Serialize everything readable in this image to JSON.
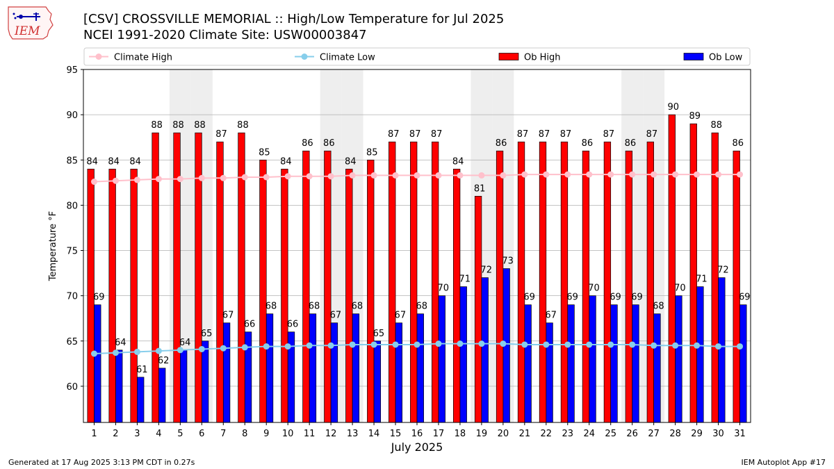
{
  "header": {
    "title_line1": "[CSV] CROSSVILLE MEMORIAL :: High/Low Temperature for Jul 2025",
    "title_line2": "NCEI 1991-2020 Climate Site: USW00003847",
    "logo_text": "IEM"
  },
  "footer": {
    "generated": "Generated at 17 Aug 2025 3:13 PM CDT in 0.27s",
    "app": "IEM Autoplot App #17"
  },
  "colors": {
    "ob_high": "#ff0000",
    "ob_low": "#0000ff",
    "climate_high": "#ffc0cb",
    "climate_low": "#87ceeb",
    "weekend_shade": "#eeeeee",
    "grid": "#b0b0b0"
  },
  "chart_data": {
    "type": "bar",
    "xlabel": "July 2025",
    "ylabel": "Temperature °F",
    "ylim": [
      56,
      95
    ],
    "yticks": [
      60,
      65,
      70,
      75,
      80,
      85,
      90,
      95
    ],
    "grid": "horizontal",
    "legend_position": "top",
    "categories": [
      1,
      2,
      3,
      4,
      5,
      6,
      7,
      8,
      9,
      10,
      11,
      12,
      13,
      14,
      15,
      16,
      17,
      18,
      19,
      20,
      21,
      22,
      23,
      24,
      25,
      26,
      27,
      28,
      29,
      30,
      31
    ],
    "weekend_days": [
      5,
      6,
      12,
      13,
      19,
      20,
      26,
      27
    ],
    "series": [
      {
        "name": "Ob High",
        "kind": "bar",
        "values": [
          84,
          84,
          84,
          88,
          88,
          88,
          87,
          88,
          85,
          84,
          86,
          86,
          84,
          85,
          87,
          87,
          87,
          84,
          81,
          86,
          87,
          87,
          87,
          86,
          87,
          86,
          87,
          90,
          89,
          88,
          86
        ]
      },
      {
        "name": "Ob Low",
        "kind": "bar",
        "values": [
          69,
          64,
          61,
          62,
          64,
          65,
          67,
          66,
          68,
          66,
          68,
          67,
          68,
          65,
          67,
          68,
          70,
          71,
          72,
          73,
          69,
          67,
          69,
          70,
          69,
          69,
          68,
          70,
          71,
          72,
          69
        ]
      },
      {
        "name": "Climate High",
        "kind": "line",
        "values": [
          82.6,
          82.7,
          82.8,
          82.9,
          82.9,
          83.0,
          83.0,
          83.1,
          83.1,
          83.2,
          83.2,
          83.2,
          83.3,
          83.3,
          83.3,
          83.3,
          83.3,
          83.3,
          83.3,
          83.3,
          83.4,
          83.4,
          83.4,
          83.4,
          83.4,
          83.4,
          83.4,
          83.4,
          83.4,
          83.4,
          83.4
        ]
      },
      {
        "name": "Climate Low",
        "kind": "line",
        "values": [
          63.6,
          63.7,
          63.8,
          63.9,
          64.0,
          64.1,
          64.2,
          64.3,
          64.4,
          64.4,
          64.5,
          64.5,
          64.6,
          64.6,
          64.6,
          64.6,
          64.7,
          64.7,
          64.7,
          64.7,
          64.6,
          64.6,
          64.6,
          64.6,
          64.6,
          64.6,
          64.5,
          64.5,
          64.5,
          64.4,
          64.4
        ]
      }
    ]
  }
}
